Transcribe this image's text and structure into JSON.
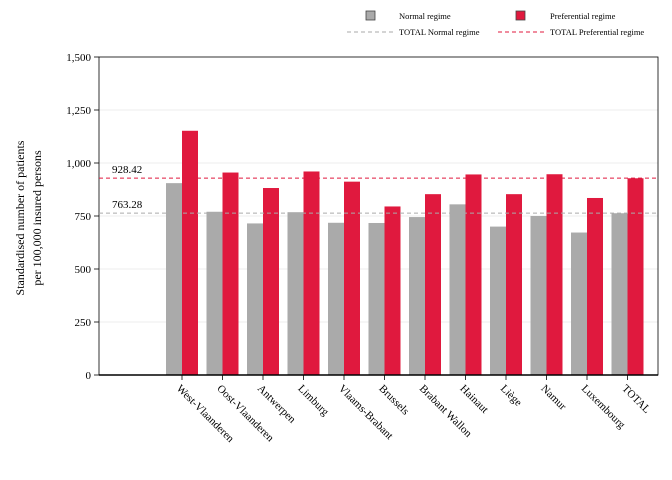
{
  "chart_data": {
    "type": "bar",
    "title": "",
    "xlabel": "",
    "ylabel_lines": [
      "Standardised number of patients",
      "per 100,000 insured persons"
    ],
    "ylim": [
      0,
      1500
    ],
    "yticks": [
      0,
      250,
      500,
      750,
      1000,
      1250,
      1500
    ],
    "ytick_labels": [
      "0",
      "250",
      "500",
      "750",
      "1,000",
      "1,250",
      "1,500"
    ],
    "grid": true,
    "legend_position": "top",
    "categories": [
      "West-Vlaanderen",
      "Oost-Vlaanderen",
      "Antwerpen",
      "Limburg",
      "Vlaams-Brabant",
      "Brussels",
      "Brabant Wallon",
      "Hainaut",
      "Liège",
      "Namur",
      "Luxembourg",
      "TOTAL"
    ],
    "series": [
      {
        "name": "Normal regime",
        "color": "#aaaaaa",
        "values": [
          905,
          770,
          715,
          768,
          718,
          717,
          745,
          805,
          700,
          750,
          672,
          763
        ]
      },
      {
        "name": "Preferential regime",
        "color": "#e0193e",
        "values": [
          1152,
          955,
          882,
          960,
          912,
          795,
          853,
          946,
          853,
          947,
          835,
          928
        ]
      }
    ],
    "reference_lines": [
      {
        "name": "TOTAL Normal regime",
        "value": 763.28,
        "label": "763.28",
        "color": "#aaaaaa"
      },
      {
        "name": "TOTAL Preferential regime",
        "value": 928.42,
        "label": "928.42",
        "color": "#e0193e"
      }
    ]
  }
}
